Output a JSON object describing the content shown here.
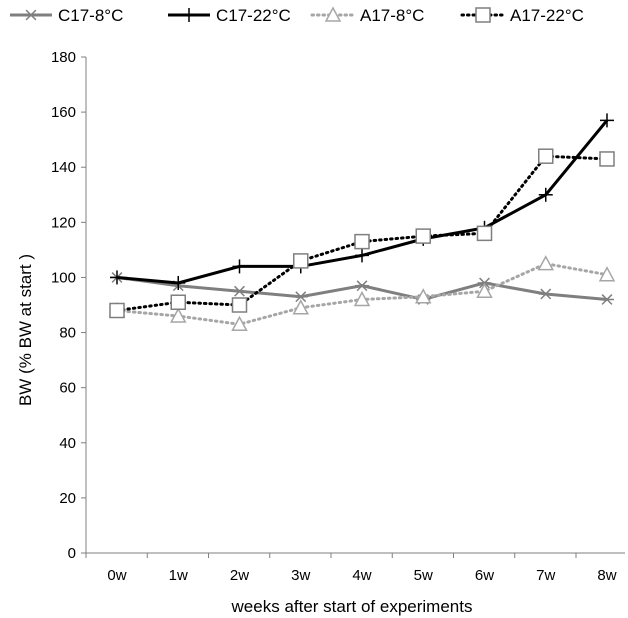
{
  "chart_data": {
    "type": "line",
    "categories": [
      "0w",
      "1w",
      "2w",
      "3w",
      "4w",
      "5w",
      "6w",
      "7w",
      "8w"
    ],
    "xlabel": "weeks after start of experiments",
    "ylabel": "BW   (% BW at start )",
    "ylim": [
      0,
      180
    ],
    "yticks": [
      0,
      20,
      40,
      60,
      80,
      100,
      120,
      140,
      160,
      180
    ],
    "grid": false,
    "legend_position": "top",
    "series": [
      {
        "name": "C17-8°C",
        "values": [
          100,
          97,
          95,
          93,
          97,
          92,
          98,
          94,
          92
        ],
        "color": "#7f7f7f",
        "dash": "solid",
        "marker": "asterisk"
      },
      {
        "name": "C17-22°C",
        "values": [
          100,
          98,
          104,
          104,
          108,
          114,
          118,
          130,
          157
        ],
        "color": "#000000",
        "dash": "solid",
        "marker": "plus"
      },
      {
        "name": "A17-8°C",
        "values": [
          88,
          86,
          83,
          89,
          92,
          93,
          95,
          105,
          101
        ],
        "color": "#a6a6a6",
        "dash": "dotted",
        "marker": "triangle"
      },
      {
        "name": "A17-22°C",
        "values": [
          88,
          91,
          90,
          106,
          113,
          115,
          116,
          144,
          143
        ],
        "color": "#000000",
        "dash": "dotted",
        "marker": "square"
      }
    ]
  }
}
